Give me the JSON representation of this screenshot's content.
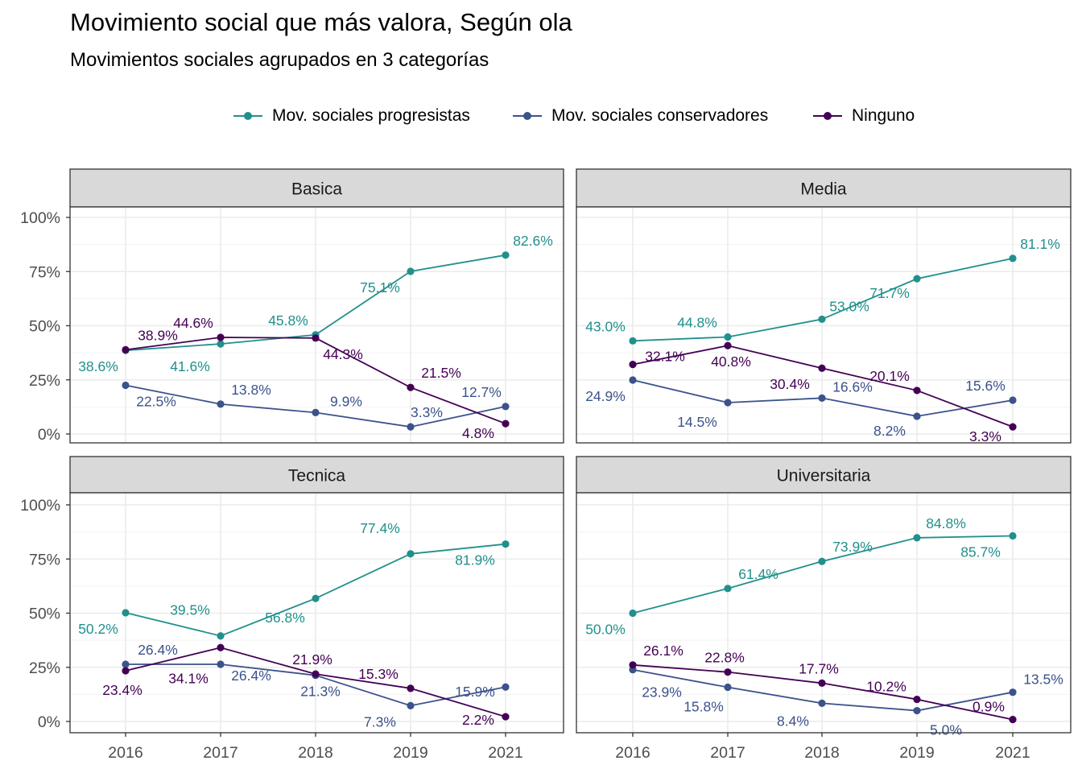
{
  "title": "Movimiento social que más valora, Según ola",
  "subtitle": "Movimientos sociales agrupados en 3 categorías",
  "chart_data": {
    "type": "line",
    "title": "Movimiento social que más valora, Según ola",
    "subtitle": "Movimientos sociales agrupados en 3 categorías",
    "x": [
      "2016",
      "2017",
      "2018",
      "2019",
      "2021"
    ],
    "y_ticks": [
      "0%",
      "25%",
      "50%",
      "75%",
      "100%"
    ],
    "ylim": [
      0,
      100
    ],
    "grid": true,
    "legend_position": "top",
    "series_meta": [
      {
        "name": "Mov. sociales progresistas",
        "color": "#21908C"
      },
      {
        "name": "Mov. sociales conservadores",
        "color": "#3B528B"
      },
      {
        "name": "Ninguno",
        "color": "#440154"
      }
    ],
    "panels": [
      {
        "label": "Basica",
        "series": [
          {
            "name": "Mov. sociales progresistas",
            "values": [
              38.6,
              41.6,
              45.8,
              75.1,
              82.6
            ],
            "labels": [
              "38.6%",
              "41.6%",
              "45.8%",
              "75.1%",
              "82.6%"
            ]
          },
          {
            "name": "Mov. sociales conservadores",
            "values": [
              22.5,
              13.8,
              9.9,
              3.3,
              12.7
            ],
            "labels": [
              "22.5%",
              "13.8%",
              "9.9%",
              "3.3%",
              "12.7%"
            ]
          },
          {
            "name": "Ninguno",
            "values": [
              38.9,
              44.6,
              44.3,
              21.5,
              4.8
            ],
            "labels": [
              "38.9%",
              "44.6%",
              "44.3%",
              "21.5%",
              "4.8%"
            ]
          }
        ]
      },
      {
        "label": "Media",
        "series": [
          {
            "name": "Mov. sociales progresistas",
            "values": [
              43.0,
              44.8,
              53.0,
              71.7,
              81.1
            ],
            "labels": [
              "43.0%",
              "44.8%",
              "53.0%",
              "71.7%",
              "81.1%"
            ]
          },
          {
            "name": "Mov. sociales conservadores",
            "values": [
              24.9,
              14.5,
              16.6,
              8.2,
              15.6
            ],
            "labels": [
              "24.9%",
              "14.5%",
              "16.6%",
              "8.2%",
              "15.6%"
            ]
          },
          {
            "name": "Ninguno",
            "values": [
              32.1,
              40.8,
              30.4,
              20.1,
              3.3
            ],
            "labels": [
              "32.1%",
              "40.8%",
              "30.4%",
              "20.1%",
              "3.3%"
            ]
          }
        ]
      },
      {
        "label": "Tecnica",
        "series": [
          {
            "name": "Mov. sociales progresistas",
            "values": [
              50.2,
              39.5,
              56.8,
              77.4,
              81.9
            ],
            "labels": [
              "50.2%",
              "39.5%",
              "56.8%",
              "77.4%",
              "81.9%"
            ]
          },
          {
            "name": "Mov. sociales conservadores",
            "values": [
              26.4,
              26.4,
              21.3,
              7.3,
              15.9
            ],
            "labels": [
              "26.4%",
              "26.4%",
              "21.3%",
              "7.3%",
              "15.9%"
            ]
          },
          {
            "name": "Ninguno",
            "values": [
              23.4,
              34.1,
              21.9,
              15.3,
              2.2
            ],
            "labels": [
              "23.4%",
              "34.1%",
              "21.9%",
              "15.3%",
              "2.2%"
            ]
          }
        ]
      },
      {
        "label": "Universitaria",
        "series": [
          {
            "name": "Mov. sociales progresistas",
            "values": [
              50.0,
              61.4,
              73.9,
              84.8,
              85.7
            ],
            "labels": [
              "50.0%",
              "61.4%",
              "73.9%",
              "84.8%",
              "85.7%"
            ]
          },
          {
            "name": "Mov. sociales conservadores",
            "values": [
              23.9,
              15.8,
              8.4,
              5.0,
              13.5
            ],
            "labels": [
              "23.9%",
              "15.8%",
              "8.4%",
              "5.0%",
              "13.5%"
            ]
          },
          {
            "name": "Ninguno",
            "values": [
              26.1,
              22.8,
              17.7,
              10.2,
              0.9
            ],
            "labels": [
              "26.1%",
              "22.8%",
              "17.7%",
              "10.2%",
              "0.9%"
            ]
          }
        ]
      }
    ]
  }
}
